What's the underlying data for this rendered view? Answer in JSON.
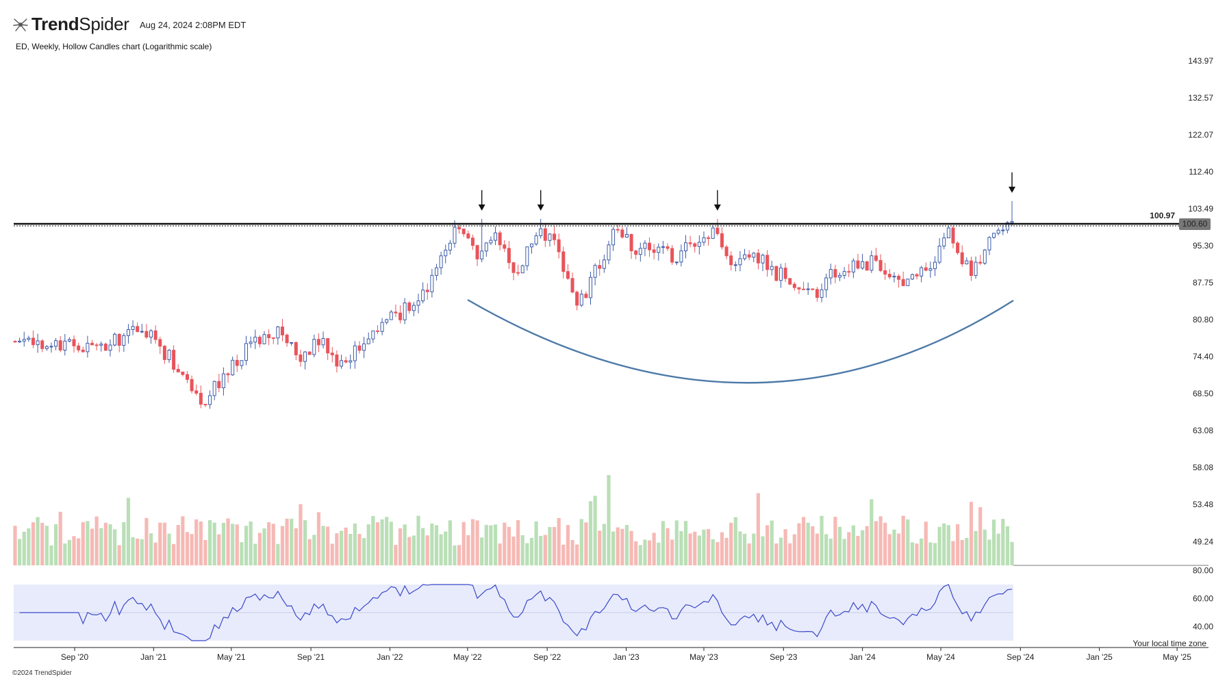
{
  "header": {
    "brand_bold": "Trend",
    "brand_light": "Spider",
    "timestamp": "Aug 24, 2024 2:08PM EDT",
    "subtitle": "ED, Weekly, Hollow Candles chart (Logarithmic scale)",
    "copyright": "©2024 TrendSpider"
  },
  "colors": {
    "up": "#3a5ba8",
    "down": "#e8545a",
    "vol_up": "#b9dfb6",
    "vol_down": "#f6b9b5",
    "rsi_line": "#3a48c9",
    "rsi_band": "#e8ebfb",
    "curve": "#4d7aa8",
    "resistance": "#111111"
  },
  "chart_data": {
    "type": "candlestick",
    "symbol": "ED",
    "interval": "Weekly",
    "scale": "logarithmic",
    "price_axis_ticks": [
      143.97,
      132.57,
      122.07,
      112.4,
      103.49,
      95.3,
      87.75,
      80.8,
      74.4,
      68.5,
      63.08,
      58.08,
      53.48,
      49.24
    ],
    "x_axis_ticks": [
      "Sep '20",
      "Jan '21",
      "May '21",
      "Sep '21",
      "Jan '22",
      "May '22",
      "Sep '22",
      "Jan '23",
      "May '23",
      "Sep '23",
      "Jan '24",
      "May '24",
      "Sep '24",
      "Jan '25",
      "May '25"
    ],
    "resistance_level": 100.97,
    "last_price": 100.6,
    "rsi_axis_ticks": [
      80.0,
      60.0,
      40.0
    ],
    "timezone_note": "Your local time zone",
    "close_path": [
      {
        "date": "2020-07",
        "close": 77
      },
      {
        "date": "2020-10",
        "close": 76
      },
      {
        "date": "2020-12",
        "close": 79
      },
      {
        "date": "2021-02",
        "close": 72
      },
      {
        "date": "2021-03",
        "close": 67
      },
      {
        "date": "2021-04",
        "close": 71
      },
      {
        "date": "2021-06",
        "close": 78
      },
      {
        "date": "2021-07",
        "close": 79
      },
      {
        "date": "2021-08",
        "close": 73
      },
      {
        "date": "2021-09",
        "close": 78
      },
      {
        "date": "2021-10",
        "close": 73
      },
      {
        "date": "2021-12",
        "close": 79
      },
      {
        "date": "2022-02",
        "close": 85
      },
      {
        "date": "2022-03",
        "close": 90
      },
      {
        "date": "2022-04",
        "close": 99
      },
      {
        "date": "2022-05",
        "close": 93
      },
      {
        "date": "2022-06",
        "close": 97
      },
      {
        "date": "2022-07",
        "close": 88
      },
      {
        "date": "2022-08",
        "close": 99
      },
      {
        "date": "2022-09",
        "close": 97
      },
      {
        "date": "2022-10",
        "close": 82
      },
      {
        "date": "2022-11",
        "close": 90
      },
      {
        "date": "2022-12",
        "close": 98
      },
      {
        "date": "2023-01",
        "close": 95
      },
      {
        "date": "2023-03",
        "close": 93
      },
      {
        "date": "2023-05",
        "close": 99
      },
      {
        "date": "2023-06",
        "close": 92
      },
      {
        "date": "2023-07",
        "close": 94
      },
      {
        "date": "2023-08",
        "close": 90
      },
      {
        "date": "2023-09",
        "close": 88
      },
      {
        "date": "2023-10",
        "close": 85
      },
      {
        "date": "2023-11",
        "close": 90
      },
      {
        "date": "2023-12",
        "close": 91
      },
      {
        "date": "2024-01",
        "close": 92
      },
      {
        "date": "2024-02",
        "close": 88
      },
      {
        "date": "2024-03",
        "close": 89
      },
      {
        "date": "2024-04",
        "close": 91
      },
      {
        "date": "2024-05",
        "close": 98
      },
      {
        "date": "2024-06",
        "close": 90
      },
      {
        "date": "2024-07",
        "close": 96
      },
      {
        "date": "2024-08",
        "close": 100.6
      }
    ],
    "marked_highs": [
      "2022-05",
      "2022-08",
      "2023-05",
      "2024-08"
    ]
  }
}
